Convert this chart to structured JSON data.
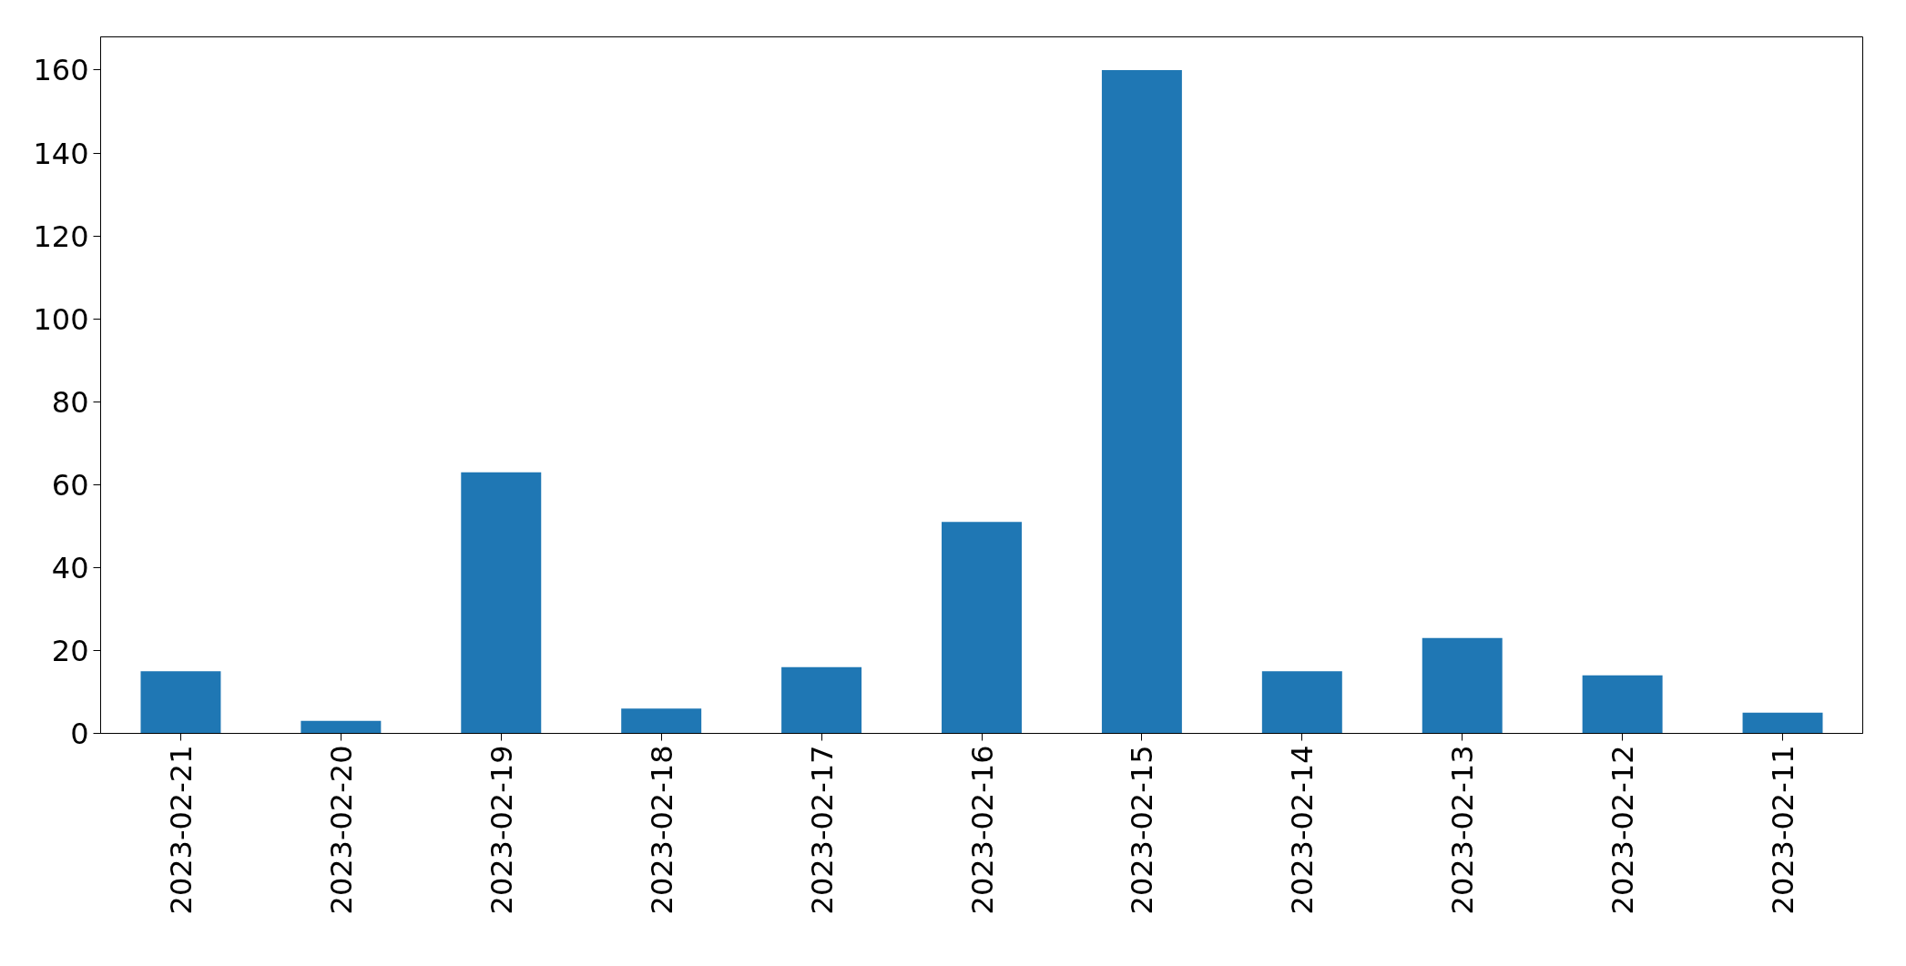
{
  "chart_data": {
    "type": "bar",
    "categories": [
      "2023-02-21",
      "2023-02-20",
      "2023-02-19",
      "2023-02-18",
      "2023-02-17",
      "2023-02-16",
      "2023-02-15",
      "2023-02-14",
      "2023-02-13",
      "2023-02-12",
      "2023-02-11"
    ],
    "values": [
      15,
      3,
      63,
      6,
      16,
      51,
      160,
      15,
      23,
      14,
      5
    ],
    "color": "#1f77b4",
    "ylim": [
      0,
      168
    ],
    "yticks": [
      0,
      20,
      40,
      60,
      80,
      100,
      120,
      140,
      160
    ],
    "grid": false
  }
}
